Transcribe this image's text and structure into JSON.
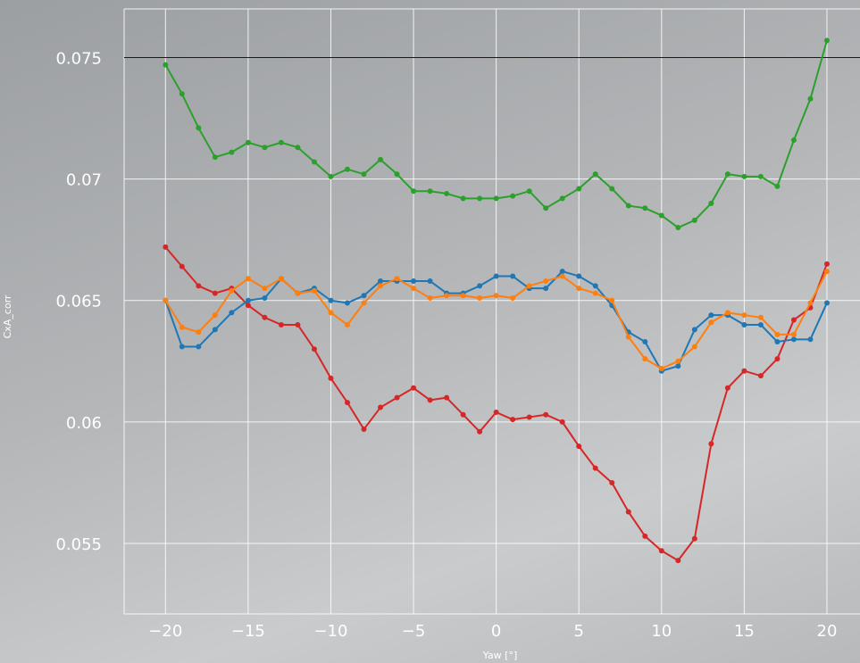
{
  "chart_data": {
    "type": "line",
    "title": "",
    "xlabel": "Yaw [°]",
    "ylabel": "CxA_corr",
    "xlim": [
      -22.5,
      22
    ],
    "ylim": [
      0.0521,
      0.077
    ],
    "x_ticks": [
      -20,
      -15,
      -10,
      -5,
      0,
      5,
      10,
      15,
      20
    ],
    "x_tick_labels": [
      "−20",
      "−15",
      "−10",
      "−5",
      "0",
      "5",
      "10",
      "15",
      "20"
    ],
    "y_ticks": [
      0.055,
      0.06,
      0.065,
      0.07,
      0.075
    ],
    "y_tick_labels": [
      "0.055",
      "0.06",
      "0.065",
      "0.07",
      "0.075"
    ],
    "grid": true,
    "reference_line": 0.075,
    "x": [
      -20,
      -19,
      -18,
      -17,
      -16,
      -15,
      -14,
      -13,
      -12,
      -11,
      -10,
      -9,
      -8,
      -7,
      -6,
      -5,
      -4,
      -3,
      -2,
      -1,
      0,
      1,
      2,
      3,
      4,
      5,
      6,
      7,
      8,
      9,
      10,
      11,
      12,
      13,
      14,
      15,
      16,
      17,
      18,
      19,
      20
    ],
    "series": [
      {
        "color": "#2ca02c",
        "values": [
          0.0747,
          0.0735,
          0.0721,
          0.0709,
          0.0711,
          0.0715,
          0.0713,
          0.0715,
          0.0713,
          0.0707,
          0.0701,
          0.0704,
          0.0702,
          0.0708,
          0.0702,
          0.0695,
          0.0695,
          0.0694,
          0.0692,
          0.0692,
          0.0692,
          0.0693,
          0.0695,
          0.0688,
          0.0692,
          0.0696,
          0.0702,
          0.0696,
          0.0689,
          0.0688,
          0.0685,
          0.068,
          0.0683,
          0.069,
          0.0702,
          0.0701,
          0.0701,
          0.0697,
          0.0716,
          0.0733,
          0.0757
        ]
      },
      {
        "color": "#d62728",
        "values": [
          0.0672,
          0.0664,
          0.0656,
          0.0653,
          0.0655,
          0.0648,
          0.0643,
          0.064,
          0.064,
          0.063,
          0.0618,
          0.0608,
          0.0597,
          0.0606,
          0.061,
          0.0614,
          0.0609,
          0.061,
          0.0603,
          0.0596,
          0.0604,
          0.0601,
          0.0602,
          0.0603,
          0.06,
          0.059,
          0.0581,
          0.0575,
          0.0563,
          0.0553,
          0.0547,
          0.0543,
          0.0552,
          0.0591,
          0.0614,
          0.0621,
          0.0619,
          0.0626,
          0.0642,
          0.0647,
          0.0665
        ]
      },
      {
        "color": "#1f77b4",
        "values": [
          0.065,
          0.0631,
          0.0631,
          0.0638,
          0.0645,
          0.065,
          0.0651,
          0.0659,
          0.0653,
          0.0655,
          0.065,
          0.0649,
          0.0652,
          0.0658,
          0.0658,
          0.0658,
          0.0658,
          0.0653,
          0.0653,
          0.0656,
          0.066,
          0.066,
          0.0655,
          0.0655,
          0.0662,
          0.066,
          0.0656,
          0.0648,
          0.0637,
          0.0633,
          0.0621,
          0.0623,
          0.0638,
          0.0644,
          0.0644,
          0.064,
          0.064,
          0.0633,
          0.0634,
          0.0634,
          0.0649
        ]
      },
      {
        "color": "#ff7f0e",
        "values": [
          0.065,
          0.0639,
          0.0637,
          0.0644,
          0.0654,
          0.0659,
          0.0655,
          0.0659,
          0.0653,
          0.0654,
          0.0645,
          0.064,
          0.0649,
          0.0656,
          0.0659,
          0.0655,
          0.0651,
          0.0652,
          0.0652,
          0.0651,
          0.0652,
          0.0651,
          0.0656,
          0.0658,
          0.066,
          0.0655,
          0.0653,
          0.065,
          0.0635,
          0.0626,
          0.0622,
          0.0625,
          0.0631,
          0.0641,
          0.0645,
          0.0644,
          0.0643,
          0.0636,
          0.0636,
          0.0649,
          0.0662
        ]
      }
    ]
  }
}
